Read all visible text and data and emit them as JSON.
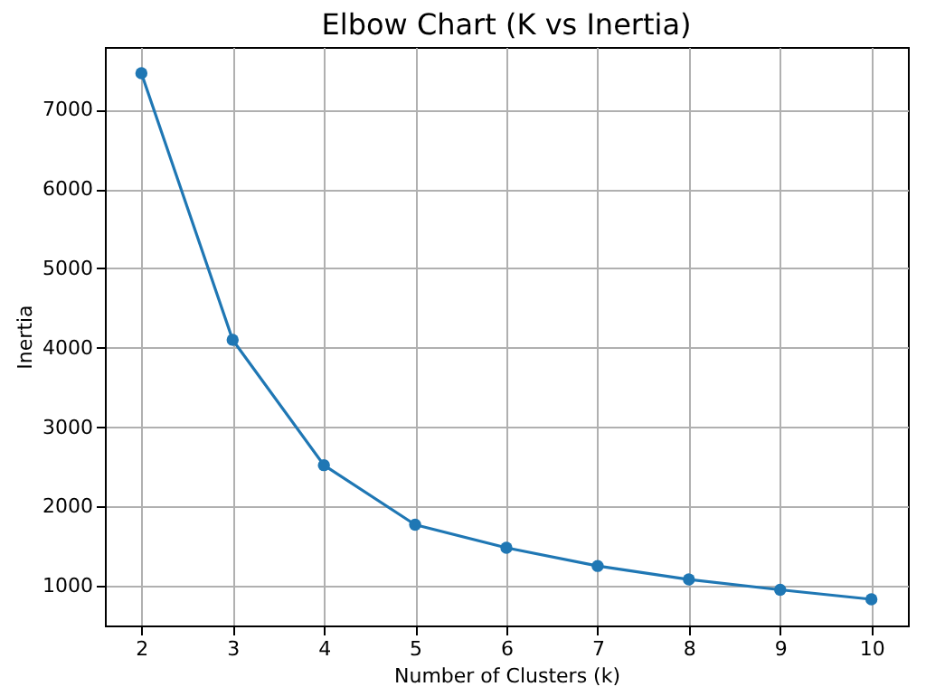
{
  "chart_data": {
    "type": "line",
    "title": "Elbow Chart (K vs Inertia)",
    "xlabel": "Number of Clusters (k)",
    "ylabel": "Inertia",
    "x": [
      2,
      3,
      4,
      5,
      6,
      7,
      8,
      9,
      10
    ],
    "series": [
      {
        "color": "#1f77b4",
        "values": [
          7460,
          4100,
          2520,
          1770,
          1480,
          1250,
          1080,
          950,
          830
        ]
      }
    ],
    "xlim": [
      1.6,
      10.4
    ],
    "xticks": [
      2,
      3,
      4,
      5,
      6,
      7,
      8,
      9,
      10
    ],
    "ylim": [
      500,
      7790
    ],
    "yticks": [
      1000,
      2000,
      3000,
      4000,
      5000,
      6000,
      7000
    ],
    "grid": true,
    "marker": "circle",
    "line_style": "solid"
  }
}
